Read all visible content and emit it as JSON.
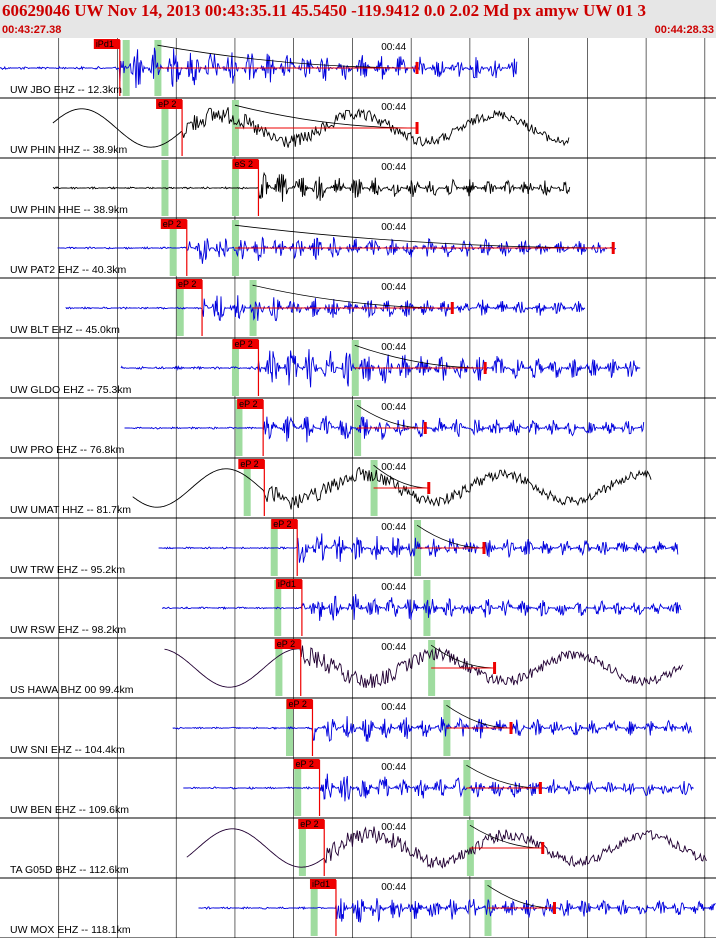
{
  "header": {
    "title": "60629046 UW Nov 14, 2013 00:43:35.11    45.5450 -119.9412  0.0 2.02 Md px amyw UW 01   3",
    "time_start": "00:43:27.38",
    "time_end": "00:44:28.33"
  },
  "colors": {
    "header_bg": "#e6e6e6",
    "header_text": "#cc0000",
    "pick": "#ee0000",
    "pick_label_bg": "#ee0000",
    "window_green": "#9fdc9f",
    "blue_trace": "#0000dd",
    "black_trace": "#000000",
    "purple_trace": "#220033",
    "grid": "#000000"
  },
  "chart_data": {
    "type": "line",
    "title": "60629046 UW Nov 14, 2013 00:43:35.11    45.5450 -119.9412  0.0 2.02 Md px amyw UW 01   3",
    "x_range": [
      "00:43:27.38",
      "00:44:28.33"
    ],
    "x_range_seconds": [
      0,
      60.95
    ],
    "minute_marker": {
      "label": "00:44",
      "offset_s": 32.62
    },
    "grid_interval_s": 5,
    "traces": [
      {
        "label": "UW JBO EHZ -- 12.3km",
        "color": "blue",
        "pick_label": "iPd1",
        "pick_s": 10.2,
        "data_start_s": 0.0,
        "data_end_s": 44.0,
        "window_s": [
          10.7,
          13.4
        ],
        "coda_end_s": 35.5,
        "amplitude": "large",
        "freq": "high"
      },
      {
        "label": "UW PHIN HHZ -- 38.9km",
        "color": "black",
        "pick_label": "eP 2",
        "pick_s": 15.5,
        "data_start_s": 4.5,
        "data_end_s": 48.5,
        "window_s": [
          14.0,
          20.0
        ],
        "coda_end_s": 35.5,
        "amplitude": "large",
        "freq": "low"
      },
      {
        "label": "UW PHIN HHE -- 38.9km",
        "color": "black",
        "pick_label": "eS 2",
        "pick_s": 22.0,
        "data_start_s": 4.5,
        "data_end_s": 48.5,
        "window_s": [
          14.0,
          20.0
        ],
        "coda_end_s": null,
        "amplitude": "medium",
        "freq": "mixed"
      },
      {
        "label": "UW PAT2 EHZ -- 40.3km",
        "color": "blue",
        "pick_label": "eP 2",
        "pick_s": 15.9,
        "data_start_s": 4.9,
        "data_end_s": 52.5,
        "window_s": [
          14.7,
          20.0
        ],
        "coda_end_s": 52.2,
        "amplitude": "medium",
        "freq": "high"
      },
      {
        "label": "UW BLT EHZ -- 45.0km",
        "color": "blue",
        "pick_label": "eP 2",
        "pick_s": 17.2,
        "data_start_s": 5.6,
        "data_end_s": 49.8,
        "window_s": [
          15.3,
          21.5
        ],
        "coda_end_s": 38.5,
        "amplitude": "medium",
        "freq": "high"
      },
      {
        "label": "UW GLDO EHZ -- 75.3km",
        "color": "blue",
        "pick_label": "eP 2",
        "pick_s": 22.0,
        "data_start_s": 10.3,
        "data_end_s": 54.5,
        "window_s": [
          20.0,
          30.2
        ],
        "coda_end_s": 41.3,
        "amplitude": "large",
        "freq": "high"
      },
      {
        "label": "UW PRO EHZ -- 76.8km",
        "color": "blue",
        "pick_label": "eP 2",
        "pick_s": 22.4,
        "data_start_s": 10.6,
        "data_end_s": 54.8,
        "window_s": [
          20.3,
          30.4
        ],
        "coda_end_s": 36.2,
        "amplitude": "medium",
        "freq": "high"
      },
      {
        "label": "UW UMAT HHZ -- 81.7km",
        "color": "black",
        "pick_label": "eP 2",
        "pick_s": 22.5,
        "data_start_s": 11.3,
        "data_end_s": 55.5,
        "window_s": [
          21.0,
          31.8
        ],
        "coda_end_s": 36.5,
        "amplitude": "large",
        "freq": "low"
      },
      {
        "label": "UW TRW EHZ -- 95.2km",
        "color": "blue",
        "pick_label": "eP 2",
        "pick_s": 25.3,
        "data_start_s": 13.5,
        "data_end_s": 57.7,
        "window_s": [
          23.3,
          35.5
        ],
        "coda_end_s": 41.2,
        "amplitude": "medium",
        "freq": "high"
      },
      {
        "label": "UW RSW EHZ -- 98.2km",
        "color": "blue",
        "pick_label": "iPd1",
        "pick_s": 25.7,
        "data_start_s": 13.8,
        "data_end_s": 58.0,
        "window_s": [
          23.6,
          36.3
        ],
        "coda_end_s": null,
        "amplitude": "medium",
        "freq": "high"
      },
      {
        "label": "US HAWA BHZ 00 99.4km",
        "color": "purple",
        "pick_label": "eP 2",
        "pick_s": 25.6,
        "data_start_s": 14.0,
        "data_end_s": 58.2,
        "window_s": [
          23.7,
          36.7
        ],
        "coda_end_s": 42.1,
        "amplitude": "large",
        "freq": "low"
      },
      {
        "label": "UW SNI EHZ -- 104.4km",
        "color": "blue",
        "pick_label": "eP 2",
        "pick_s": 26.6,
        "data_start_s": 14.7,
        "data_end_s": 58.9,
        "window_s": [
          24.6,
          38.0
        ],
        "coda_end_s": 43.5,
        "amplitude": "medium",
        "freq": "high"
      },
      {
        "label": "UW BEN EHZ -- 109.6km",
        "color": "blue",
        "pick_label": "eP 2",
        "pick_s": 27.2,
        "data_start_s": 15.6,
        "data_end_s": 59.1,
        "window_s": [
          25.3,
          39.7
        ],
        "coda_end_s": 46.0,
        "amplitude": "medium",
        "freq": "high"
      },
      {
        "label": "TA G05D BHZ -- 112.6km",
        "color": "purple",
        "pick_label": "eP 2",
        "pick_s": 27.6,
        "data_start_s": 15.9,
        "data_end_s": 60.2,
        "window_s": [
          25.7,
          40.0
        ],
        "coda_end_s": 46.2,
        "amplitude": "large",
        "freq": "low"
      },
      {
        "label": "UW MOX EHZ -- 118.1km",
        "color": "blue",
        "pick_label": "iPd1",
        "pick_s": 28.6,
        "data_start_s": 16.9,
        "data_end_s": 60.95,
        "window_s": [
          26.7,
          41.5
        ],
        "coda_end_s": 47.2,
        "amplitude": "medium",
        "freq": "high"
      }
    ]
  }
}
